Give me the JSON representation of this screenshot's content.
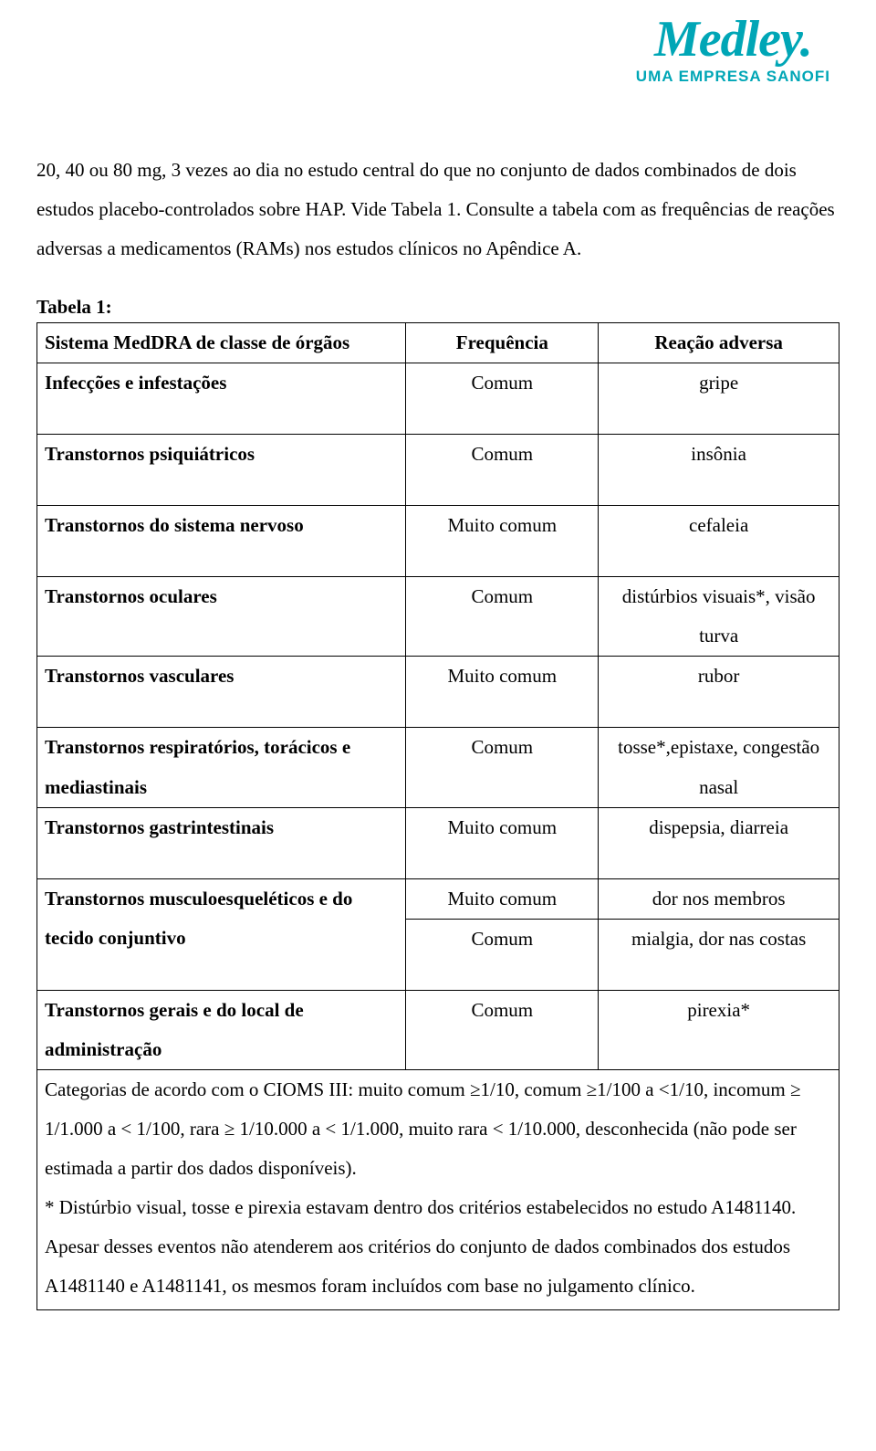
{
  "brand": {
    "logo_text": "Medley.",
    "tagline": "UMA EMPRESA SANOFI",
    "color": "#00a6b6"
  },
  "intro_paragraph": "20, 40 ou 80 mg, 3 vezes ao dia no estudo central do que no conjunto de dados combinados de dois estudos placebo-controlados sobre HAP. Vide Tabela 1. Consulte a tabela com as frequências de reações adversas a medicamentos (RAMs) nos estudos clínicos no Apêndice A.",
  "table_title": "Tabela 1:",
  "table": {
    "headers": {
      "system": "Sistema MedDRA de classe de órgãos",
      "frequency": "Frequência",
      "reaction": "Reação adversa"
    },
    "rows": [
      {
        "system": "Infecções e infestações",
        "frequency": "Comum",
        "reaction": "gripe",
        "tall": true
      },
      {
        "system": "Transtornos psiquiátricos",
        "frequency": "Comum",
        "reaction": "insônia",
        "tall": true
      },
      {
        "system": "Transtornos do sistema nervoso",
        "frequency": "Muito comum",
        "reaction": "cefaleia",
        "tall": true
      },
      {
        "system": "Transtornos oculares",
        "frequency": "Comum",
        "reaction": "distúrbios visuais*, visão turva"
      },
      {
        "system": "Transtornos vasculares",
        "frequency": "Muito comum",
        "reaction": "rubor",
        "tall": true
      },
      {
        "system": "Transtornos respiratórios, torácicos e mediastinais",
        "frequency": "Comum",
        "reaction": "tosse*,epistaxe, congestão nasal"
      },
      {
        "system": "Transtornos gastrintestinais",
        "frequency": "Muito comum",
        "reaction": "dispepsia, diarreia",
        "tall": true
      },
      {
        "system": "Transtornos musculoesqueléticos e do tecido conjuntivo",
        "frequency": "Muito comum",
        "reaction": "dor nos membros",
        "rowspan_sys": 2
      },
      {
        "system": "",
        "frequency": "Comum",
        "reaction": "mialgia, dor nas costas",
        "skip_sys": true,
        "tall": true
      },
      {
        "system": "Transtornos gerais e do local de administração",
        "frequency": "Comum",
        "reaction": "pirexia*"
      }
    ]
  },
  "footnote": "Categorias de acordo com o CIOMS III: muito comum ≥1/10, comum ≥1/100 a <1/10, incomum ≥ 1/1.000 a < 1/100, rara ≥ 1/10.000 a < 1/1.000, muito rara < 1/10.000, desconhecida (não pode ser estimada a partir dos dados disponíveis).\n* Distúrbio visual, tosse e pirexia estavam dentro dos critérios estabelecidos no estudo A1481140. Apesar desses eventos não atenderem aos critérios do conjunto de dados combinados dos estudos A1481140 e A1481141, os mesmos foram incluídos com base no julgamento clínico."
}
